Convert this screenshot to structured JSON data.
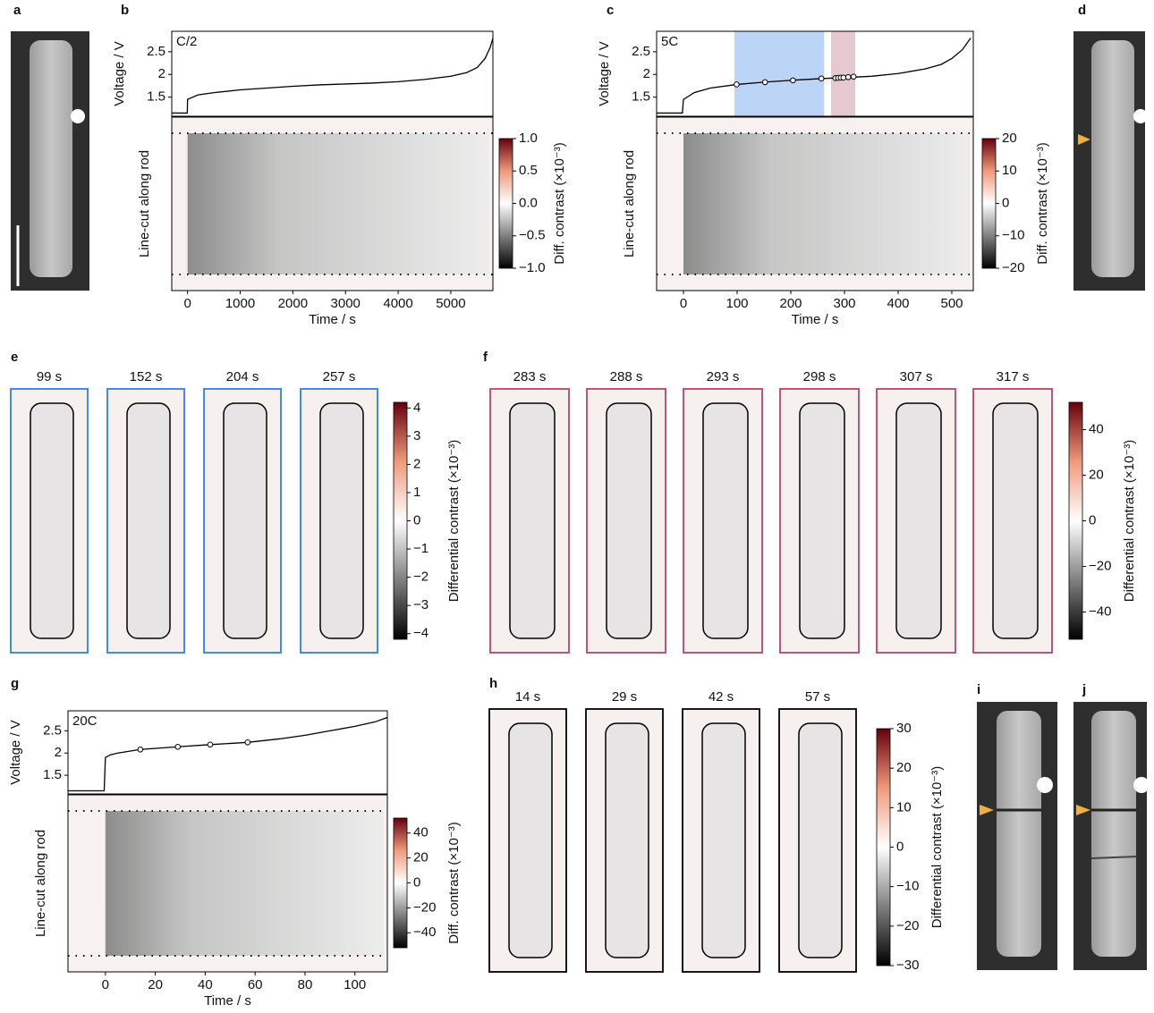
{
  "images": [
    {
      "label": "a"
    },
    {
      "label": "d"
    },
    {
      "label": "i"
    },
    {
      "label": "j"
    }
  ],
  "chart_data": [
    {
      "type": "line",
      "label": "b",
      "annotation": "C/2",
      "ylabel": "Voltage / V",
      "x": [
        -300,
        -5,
        0,
        200,
        500,
        1000,
        1500,
        2000,
        2500,
        3000,
        3500,
        4000,
        4500,
        5000,
        5300,
        5500,
        5650,
        5750,
        5800
      ],
      "values": [
        1.15,
        1.15,
        1.45,
        1.55,
        1.6,
        1.66,
        1.7,
        1.74,
        1.77,
        1.79,
        1.81,
        1.84,
        1.89,
        1.96,
        2.04,
        2.15,
        2.35,
        2.6,
        2.8
      ],
      "color": "#000000",
      "xlim": [
        -300,
        5800
      ],
      "ylim": [
        1.08,
        2.95
      ],
      "yticks": [
        1.5,
        2.0,
        2.5
      ]
    },
    {
      "type": "heatmap",
      "ylabel": "Line-cut along rod",
      "xlabel": "Time / s",
      "xlim": [
        -300,
        5800
      ],
      "xticks": [
        0,
        1000,
        2000,
        3000,
        4000,
        5000
      ],
      "colorbar_label": "Diff. contrast (×10⁻³)",
      "clim": [
        -1,
        1
      ],
      "cticks": [
        {
          "value": -1,
          "label": "−1.0"
        },
        {
          "value": -0.5,
          "label": "−0.5"
        },
        {
          "value": 0,
          "label": "0.0"
        },
        0.5,
        {
          "value": 1,
          "label": "1.0"
        }
      ]
    },
    {
      "type": "line",
      "label": "c",
      "annotation": "5C",
      "ylabel": "Voltage / V",
      "x": [
        -50,
        -2,
        0,
        20,
        50,
        100,
        150,
        200,
        260,
        300,
        350,
        400,
        450,
        480,
        500,
        520,
        535
      ],
      "values": [
        1.15,
        1.15,
        1.45,
        1.6,
        1.7,
        1.78,
        1.83,
        1.87,
        1.91,
        1.93,
        1.96,
        2.02,
        2.12,
        2.22,
        2.35,
        2.55,
        2.8
      ],
      "color": "#000000",
      "xlim": [
        -50,
        540
      ],
      "ylim": [
        1.08,
        2.95
      ],
      "yticks": [
        1.5,
        2.0,
        2.5
      ],
      "markers": {
        "x": [
          99,
          152,
          204,
          257,
          283,
          288,
          293,
          298,
          307,
          317
        ],
        "values": [
          1.78,
          1.83,
          1.87,
          1.91,
          1.92,
          1.925,
          1.93,
          1.93,
          1.94,
          1.95
        ]
      },
      "spans": [
        {
          "start": 95,
          "end": 262,
          "color": "#bcd4f6"
        },
        {
          "start": 275,
          "end": 320,
          "color": "#e6c8d0"
        }
      ]
    },
    {
      "type": "heatmap",
      "ylabel": "Line-cut along rod",
      "xlabel": "Time / s",
      "xlim": [
        -50,
        540
      ],
      "xticks": [
        0,
        100,
        200,
        300,
        400,
        500
      ],
      "colorbar_label": "Diff. contrast (×10⁻³)",
      "clim": [
        -20,
        20
      ],
      "cticks": [
        {
          "value": -20,
          "label": "−20"
        },
        {
          "value": -10,
          "label": "−10"
        },
        0,
        10,
        20
      ]
    },
    {
      "type": "images",
      "label": "e",
      "titles": [
        "99 s",
        "152 s",
        "204 s",
        "257 s"
      ],
      "frame_color": "#2f7fe0",
      "colorbar_label": "Differential contrast (×10⁻³)",
      "clim": [
        -4.2,
        4.2
      ],
      "cticks": [
        {
          "value": -4,
          "label": "−4"
        },
        {
          "value": -3,
          "label": "−3"
        },
        {
          "value": -2,
          "label": "−2"
        },
        {
          "value": -1,
          "label": "−1"
        },
        0,
        1,
        2,
        3,
        4
      ]
    },
    {
      "type": "images",
      "label": "f",
      "titles": [
        "283 s",
        "288 s",
        "293 s",
        "298 s",
        "307 s",
        "317 s"
      ],
      "frame_color": "#b5456a",
      "colorbar_label": "Differential contrast (×10⁻³)",
      "clim": [
        -52,
        52
      ],
      "cticks": [
        {
          "value": -40,
          "label": "−40"
        },
        {
          "value": -20,
          "label": "−20"
        },
        0,
        20,
        40
      ]
    },
    {
      "type": "line",
      "label": "g",
      "annotation": "20C",
      "ylabel": "Voltage / V",
      "x": [
        -15,
        -0.5,
        0,
        2,
        5,
        14,
        29,
        42,
        57,
        70,
        80,
        90,
        100,
        108,
        113
      ],
      "values": [
        1.15,
        1.15,
        1.9,
        1.96,
        2.0,
        2.08,
        2.14,
        2.19,
        2.24,
        2.32,
        2.4,
        2.5,
        2.6,
        2.7,
        2.8
      ],
      "color": "#000000",
      "xlim": [
        -15,
        113
      ],
      "ylim": [
        1.08,
        2.95
      ],
      "yticks": [
        1.5,
        2.0,
        2.5
      ],
      "markers": {
        "x": [
          14,
          29,
          42,
          57
        ],
        "values": [
          2.08,
          2.14,
          2.19,
          2.24
        ]
      }
    },
    {
      "type": "heatmap",
      "ylabel": "Line-cut along rod",
      "xlabel": "Time / s",
      "xlim": [
        -15,
        113
      ],
      "xticks": [
        0,
        20,
        40,
        60,
        80,
        100
      ],
      "colorbar_label": "Diff. contrast (×10⁻³)",
      "clim": [
        -52,
        52
      ],
      "cticks": [
        {
          "value": -40,
          "label": "−40"
        },
        {
          "value": -20,
          "label": "−20"
        },
        0,
        20,
        40
      ]
    },
    {
      "type": "images",
      "label": "h",
      "titles": [
        "14 s",
        "29 s",
        "42 s",
        "57 s"
      ],
      "frame_color": "#000000",
      "colorbar_label": "Differential contrast (×10⁻³)",
      "clim": [
        -30,
        30
      ],
      "cticks": [
        {
          "value": -30,
          "label": "−30"
        },
        {
          "value": -20,
          "label": "−20"
        },
        {
          "value": -10,
          "label": "−10"
        },
        0,
        10,
        20,
        30
      ]
    }
  ]
}
